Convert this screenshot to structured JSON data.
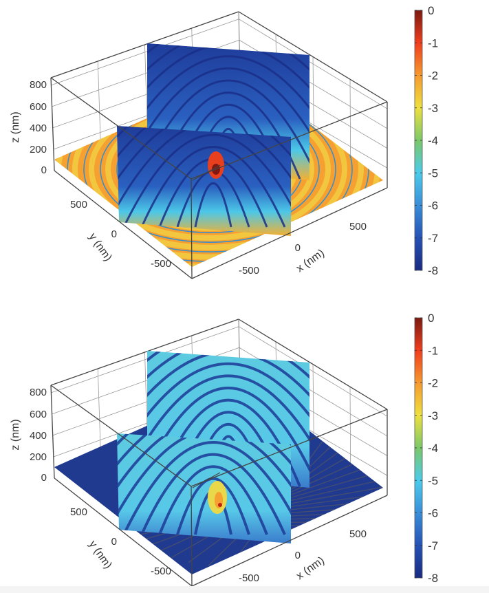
{
  "chart_data": [
    {
      "type": "heatmap",
      "projection": "3d-slices",
      "slices": [
        "z=0",
        "x=0",
        "y=0"
      ],
      "xlabel": "x (nm)",
      "ylabel": "y (nm)",
      "zlabel": "z (nm)",
      "xticks": [
        "-500",
        "0",
        "500"
      ],
      "yticks": [
        "-500",
        "0",
        "500"
      ],
      "zticks": [
        "0",
        "200",
        "400",
        "600",
        "800"
      ],
      "colorbar": {
        "ticks": [
          "0",
          "-1",
          "-2",
          "-3",
          "-4",
          "-5",
          "-6",
          "-7",
          "-8"
        ],
        "range": [
          -8,
          0
        ],
        "colormap": "jet"
      },
      "colors": {
        "floor": "#f5a030",
        "slice_low": "#f07a28",
        "slice_high": "#2a5cb8",
        "rings": "#1f3f9a"
      }
    },
    {
      "type": "heatmap",
      "projection": "3d-slices",
      "slices": [
        "z=0",
        "x=0",
        "y=0"
      ],
      "xlabel": "x (nm)",
      "ylabel": "y (nm)",
      "zlabel": "z (nm)",
      "xticks": [
        "-500",
        "0",
        "500"
      ],
      "yticks": [
        "-500",
        "0",
        "500"
      ],
      "zticks": [
        "0",
        "200",
        "400",
        "600",
        "800"
      ],
      "colorbar": {
        "ticks": [
          "0",
          "-1",
          "-2",
          "-3",
          "-4",
          "-5",
          "-6",
          "-7",
          "-8"
        ],
        "range": [
          -8,
          0
        ],
        "colormap": "jet"
      },
      "colors": {
        "floor": "#1f3a8f",
        "slice_low": "#e8d84a",
        "slice_high": "#4cc4e8",
        "rings": "#1f3f9a"
      }
    }
  ]
}
